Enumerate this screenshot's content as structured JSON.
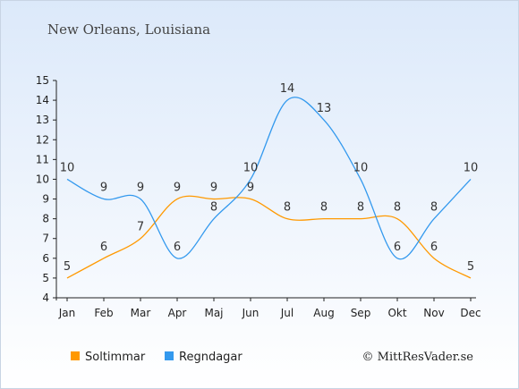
{
  "chart_data": {
    "type": "line",
    "title": "New Orleans, Louisiana",
    "categories": [
      "Jan",
      "Feb",
      "Mar",
      "Apr",
      "Maj",
      "Jun",
      "Jul",
      "Aug",
      "Sep",
      "Okt",
      "Nov",
      "Dec"
    ],
    "series": [
      {
        "name": "Soltimmar",
        "color": "#ff9900",
        "values": [
          5,
          6,
          7,
          9,
          9,
          9,
          8,
          8,
          8,
          8,
          6,
          5
        ]
      },
      {
        "name": "Regndagar",
        "color": "#3399ee",
        "values": [
          10,
          9,
          9,
          6,
          8,
          10,
          14,
          13,
          10,
          6,
          8,
          10
        ]
      }
    ],
    "ylim": [
      4,
      15
    ],
    "yticks": [
      4,
      5,
      6,
      7,
      8,
      9,
      10,
      11,
      12,
      13,
      14,
      15
    ],
    "xlabel": "",
    "ylabel": "",
    "grid": false,
    "legend": "bottom-left"
  },
  "credit": "© MittResVader.se"
}
